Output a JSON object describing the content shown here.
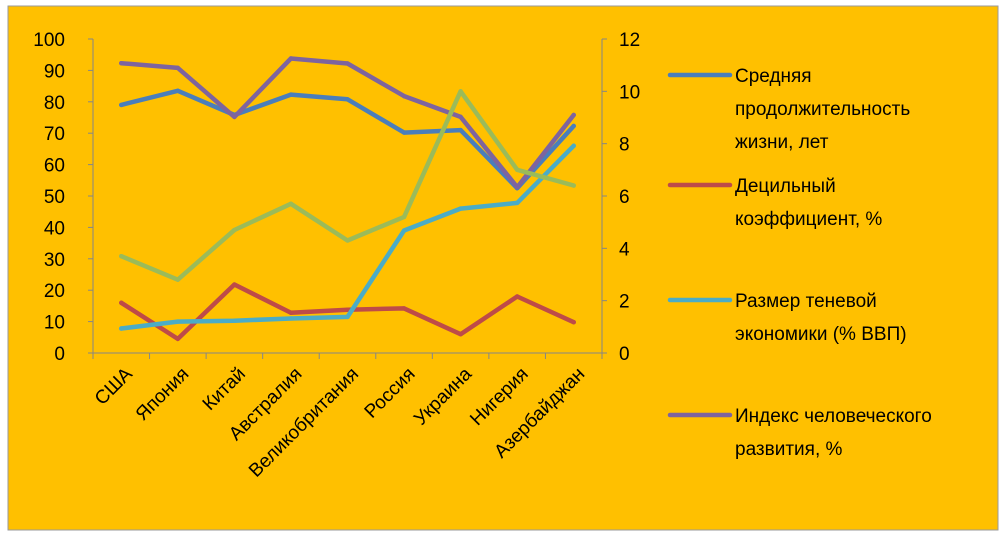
{
  "chart_data": {
    "type": "line",
    "background": "#FFC000",
    "categories": [
      "США",
      "Япония",
      "Китай",
      "Австралия",
      "Великобритания",
      "Россия",
      "Украина",
      "Нигерия",
      "Азербайджан"
    ],
    "y_left": {
      "range": [
        0,
        100
      ],
      "ticks": [
        "0",
        "10",
        "20",
        "30",
        "40",
        "50",
        "60",
        "70",
        "80",
        "90",
        "100"
      ]
    },
    "y_right": {
      "range": [
        0,
        12
      ],
      "ticks": [
        "0",
        "2",
        "4",
        "6",
        "8",
        "10",
        "12"
      ]
    },
    "grid": false,
    "legend_position": "right",
    "series": [
      {
        "name": "Средняя продолжительность жизни, лет",
        "legend_lines": [
          "Средняя",
          "продолжительность",
          "жизни, лет"
        ],
        "axis": "left",
        "color": "#4A7EBB",
        "values": [
          79,
          83.5,
          75.8,
          82.3,
          80.8,
          70.2,
          71,
          52.5,
          72.3
        ]
      },
      {
        "name": "Децильный коэффициент, %",
        "legend_lines": [
          "Децильный",
          "коэффициент, %"
        ],
        "axis": "left",
        "color": "#BE4B48",
        "values": [
          16,
          4.5,
          21.8,
          12.8,
          13.8,
          14.2,
          6,
          18,
          9.8
        ]
      },
      {
        "name": "Размер теневой экономики (% ВВП)",
        "legend_lines": [
          "Размер теневой",
          "экономики (% ВВП)"
        ],
        "axis": "left",
        "color": "#4BACC6",
        "values": [
          7.8,
          10,
          10.3,
          11,
          11.5,
          39,
          46,
          47.8,
          66
        ]
      },
      {
        "name": "Индекс человеческого развития, %",
        "legend_lines": [
          "Индекс человеческого",
          "развития, %"
        ],
        "axis": "left",
        "color": "#7E649E",
        "values": [
          92.3,
          90.8,
          75.2,
          93.8,
          92.2,
          81.8,
          75.2,
          52.8,
          75.8
        ]
      },
      {
        "name": "",
        "axis": "right",
        "color": "#9BBB59",
        "values": [
          3.7,
          2.8,
          4.7,
          5.7,
          4.3,
          5.2,
          10,
          7,
          6.4
        ]
      }
    ]
  }
}
